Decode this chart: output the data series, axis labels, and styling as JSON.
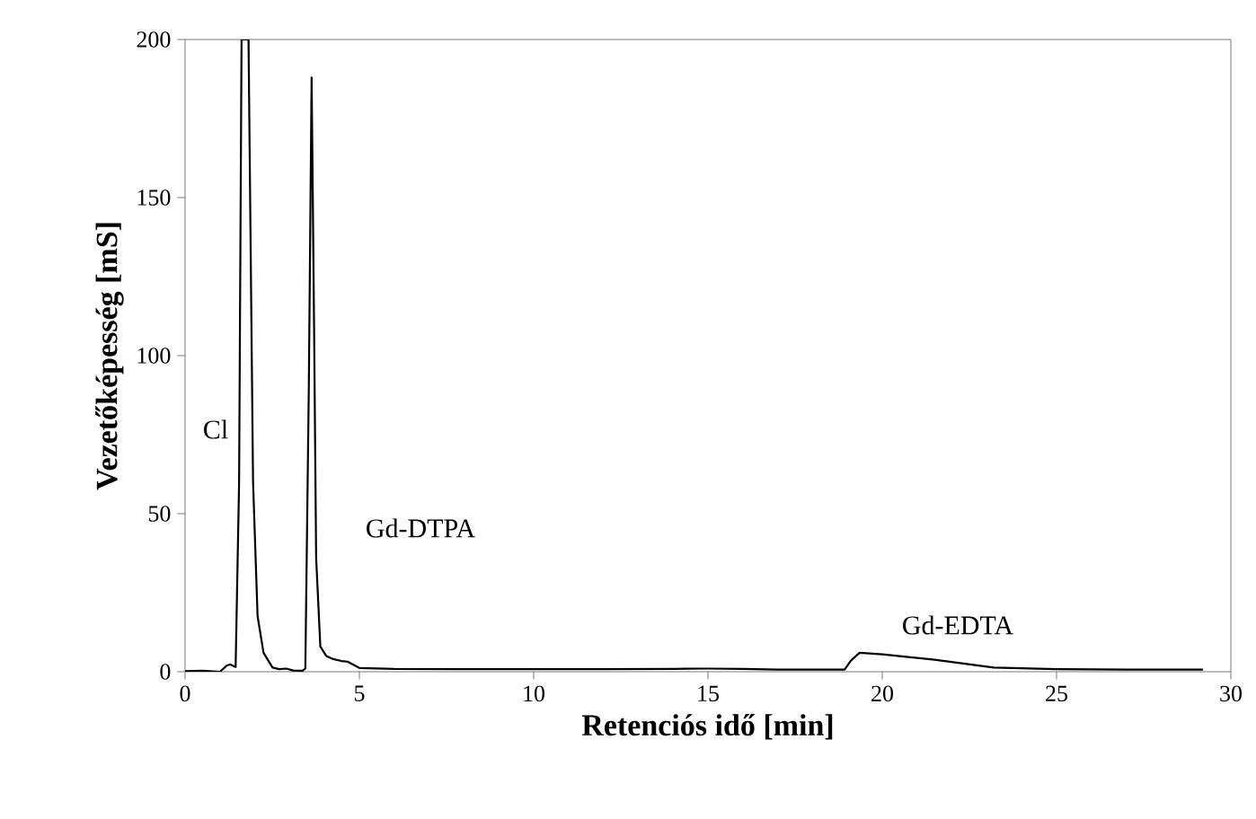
{
  "chart_data": {
    "type": "line",
    "xlabel": "Retenciós idő [min]",
    "ylabel": "Vezetőképesség [mS]",
    "xlim": [
      0,
      30
    ],
    "ylim": [
      0,
      200
    ],
    "xticks": [
      0,
      5,
      10,
      15,
      20,
      25,
      30
    ],
    "yticks": [
      0,
      50,
      100,
      150,
      200
    ],
    "grid": false,
    "marker": "none",
    "line_style": "solid",
    "annotations": [
      "Cl",
      "Gd-DTPA",
      "Gd-EDTA"
    ],
    "series": [
      {
        "color": "#000000",
        "x": [
          0,
          0.5,
          1.0,
          1.2,
          1.3,
          1.45,
          1.55,
          1.62,
          1.82,
          1.95,
          2.08,
          2.25,
          2.51,
          2.7,
          2.9,
          3.1,
          3.37,
          3.45,
          3.55,
          3.63,
          3.7,
          3.76,
          3.88,
          4.05,
          4.25,
          4.48,
          4.66,
          5.0,
          6,
          8,
          10,
          12,
          14,
          15,
          16,
          17,
          18,
          18.92,
          19.1,
          19.35,
          20,
          21.5,
          23.2,
          25,
          27,
          29.2
        ],
        "values": [
          0.2,
          0.3,
          0.0,
          2.0,
          2.3,
          1.5,
          60,
          200,
          200,
          60,
          17.6,
          6,
          1.3,
          0.8,
          1.0,
          0.4,
          0.3,
          1.0,
          90,
          188,
          110,
          36,
          8,
          5,
          4,
          3.4,
          3.2,
          1.2,
          0.9,
          0.8,
          0.8,
          0.8,
          0.9,
          1.0,
          0.9,
          0.7,
          0.7,
          0.7,
          3.5,
          6,
          5.5,
          3.8,
          1.3,
          0.8,
          0.7,
          0.7
        ]
      }
    ]
  }
}
